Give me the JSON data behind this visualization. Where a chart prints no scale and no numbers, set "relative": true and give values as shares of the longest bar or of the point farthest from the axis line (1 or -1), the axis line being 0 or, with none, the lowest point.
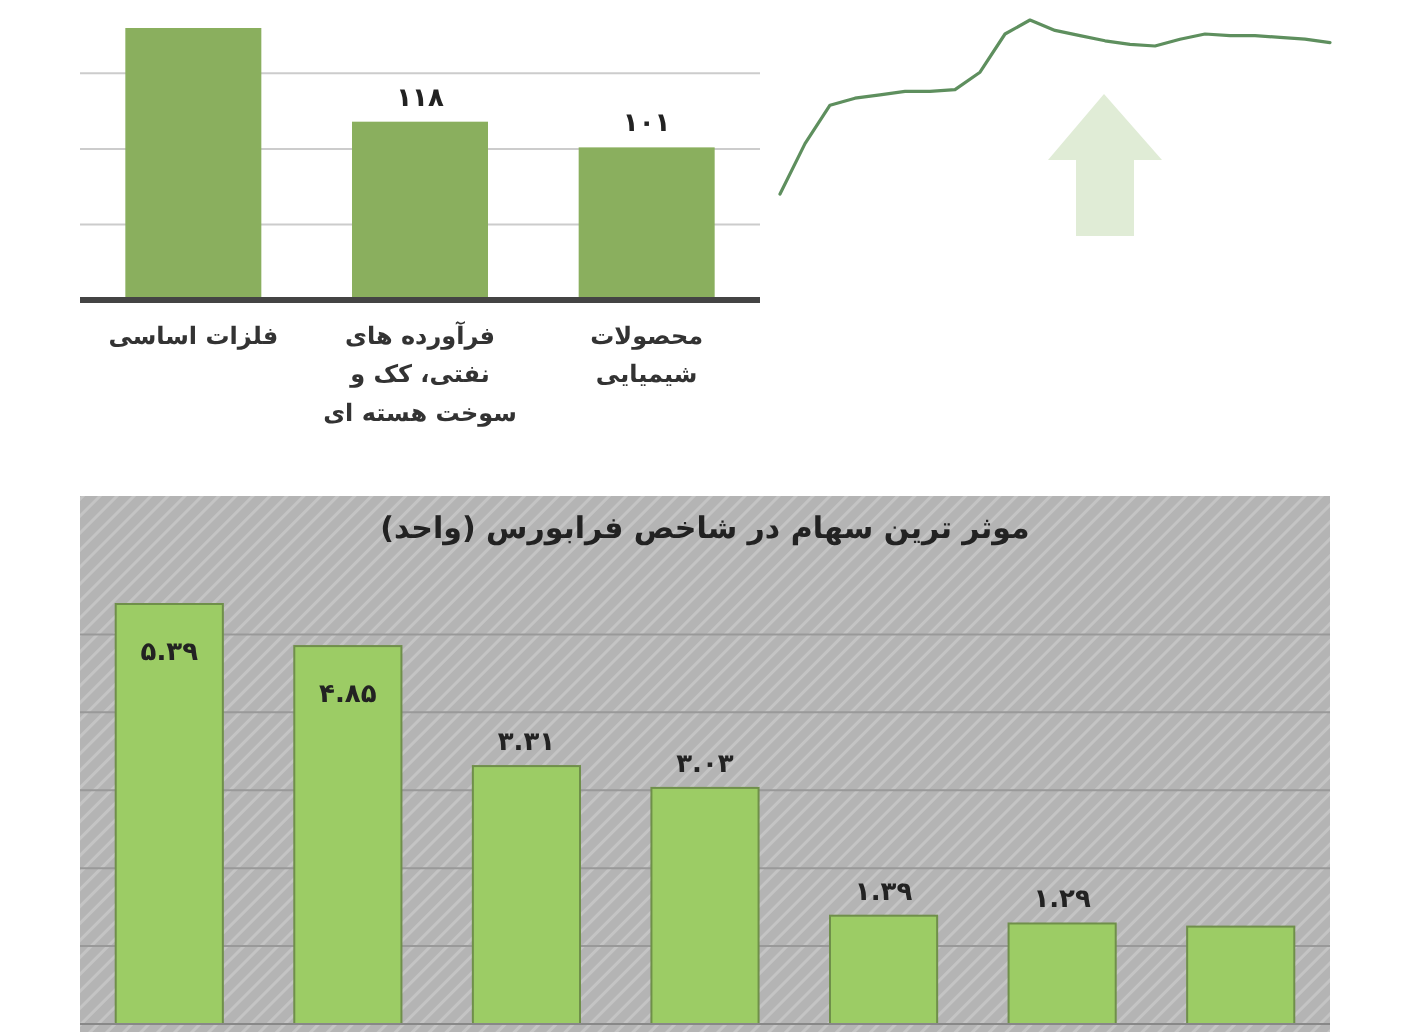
{
  "chart_data": [
    {
      "type": "bar",
      "categories": [
        "فلزات اساسی",
        "فرآورده های نفتی، کک و سوخت هسته ای",
        "محصولات شیمیایی"
      ],
      "values": [
        180,
        118,
        101
      ],
      "value_labels": [
        null,
        "۱۱۸",
        "۱۰۱"
      ],
      "color": "#8aaf5e",
      "yticks": [
        50,
        100,
        150
      ],
      "grid": "y",
      "tick_labels": "x"
    },
    {
      "type": "line",
      "relative": true,
      "categories": [
        null,
        null,
        null,
        null,
        null,
        null,
        null,
        null,
        null,
        null,
        null,
        null,
        null,
        null,
        null,
        null,
        null,
        null,
        null,
        null,
        null,
        null,
        null
      ],
      "series": [
        {
          "color": "#5e8f5e",
          "values": [
            0,
            0.29,
            0.51,
            0.55,
            0.57,
            0.59,
            0.59,
            0.6,
            0.7,
            0.92,
            1.0,
            0.94,
            0.91,
            0.88,
            0.86,
            0.85,
            0.89,
            0.92,
            0.91,
            0.91,
            0.9,
            0.89,
            0.87
          ]
        }
      ]
    },
    {
      "type": "bar",
      "title": "موثر ترین سهام در شاخص فرابورس (واحد)",
      "categories": [
        null,
        null,
        null,
        null,
        null,
        null,
        null
      ],
      "values": [
        5.39,
        4.85,
        3.31,
        3.03,
        1.39,
        1.29,
        1.25
      ],
      "value_labels": [
        "۵.۳۹",
        "۴.۸۵",
        "۳.۳۱",
        "۳.۰۳",
        "۱.۳۹",
        "۱.۲۹",
        null
      ],
      "color": "#9ccc65",
      "yticks": [
        1,
        2,
        3,
        4,
        5
      ],
      "grid": "y",
      "tick_labels": false
    }
  ]
}
